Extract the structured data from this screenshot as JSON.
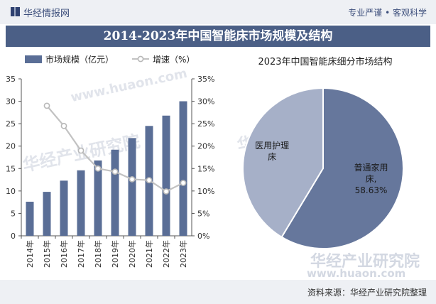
{
  "header": {
    "brand": "华经情报网",
    "slogan": "专业严谨 • 客观科学"
  },
  "title": "2014-2023年中国智能床市场规模及结构",
  "footer": {
    "source": "资料来源：华经产业研究院整理"
  },
  "watermarks": {
    "cn": "华经产业研究院",
    "url": "www.huaon.com"
  },
  "colors": {
    "bar": "#5a6e96",
    "line": "#c2c2c2",
    "slice_main": "#66779c",
    "slice_minor": "#a6b0c8",
    "title_bg": "#4b5f86"
  },
  "chart_data": [
    {
      "type": "bar+line",
      "categories": [
        "2014年",
        "2015年",
        "2016年",
        "2017年",
        "2018年",
        "2019年",
        "2020年",
        "2021年",
        "2022年",
        "2023年"
      ],
      "series": [
        {
          "name": "市场规模（亿元）",
          "type": "bar",
          "axis": "left",
          "values": [
            7.6,
            9.8,
            12.3,
            14.6,
            16.8,
            19.2,
            21.8,
            24.5,
            26.8,
            30.0
          ]
        },
        {
          "name": "增速（%）",
          "type": "line",
          "axis": "right",
          "values": [
            null,
            29.0,
            24.5,
            19.0,
            15.0,
            14.3,
            12.6,
            12.4,
            9.9,
            11.8
          ]
        }
      ],
      "y_left": {
        "min": 0,
        "max": 35,
        "ticks": [
          "0",
          "5",
          "10",
          "15",
          "20",
          "25",
          "30",
          "35"
        ]
      },
      "y_right": {
        "min": 0,
        "max": 35,
        "ticks": [
          "0%",
          "5%",
          "10%",
          "15%",
          "20%",
          "25%",
          "30%",
          "35%"
        ]
      },
      "legend_position": "top",
      "grid": false
    },
    {
      "type": "pie",
      "title": "2023年中国智能床细分市场结构",
      "slices": [
        {
          "label": "普通家用床",
          "value": 58.63,
          "value_label": "58.63%"
        },
        {
          "label": "医用护理床",
          "value": 41.37,
          "value_label": ""
        }
      ]
    }
  ]
}
